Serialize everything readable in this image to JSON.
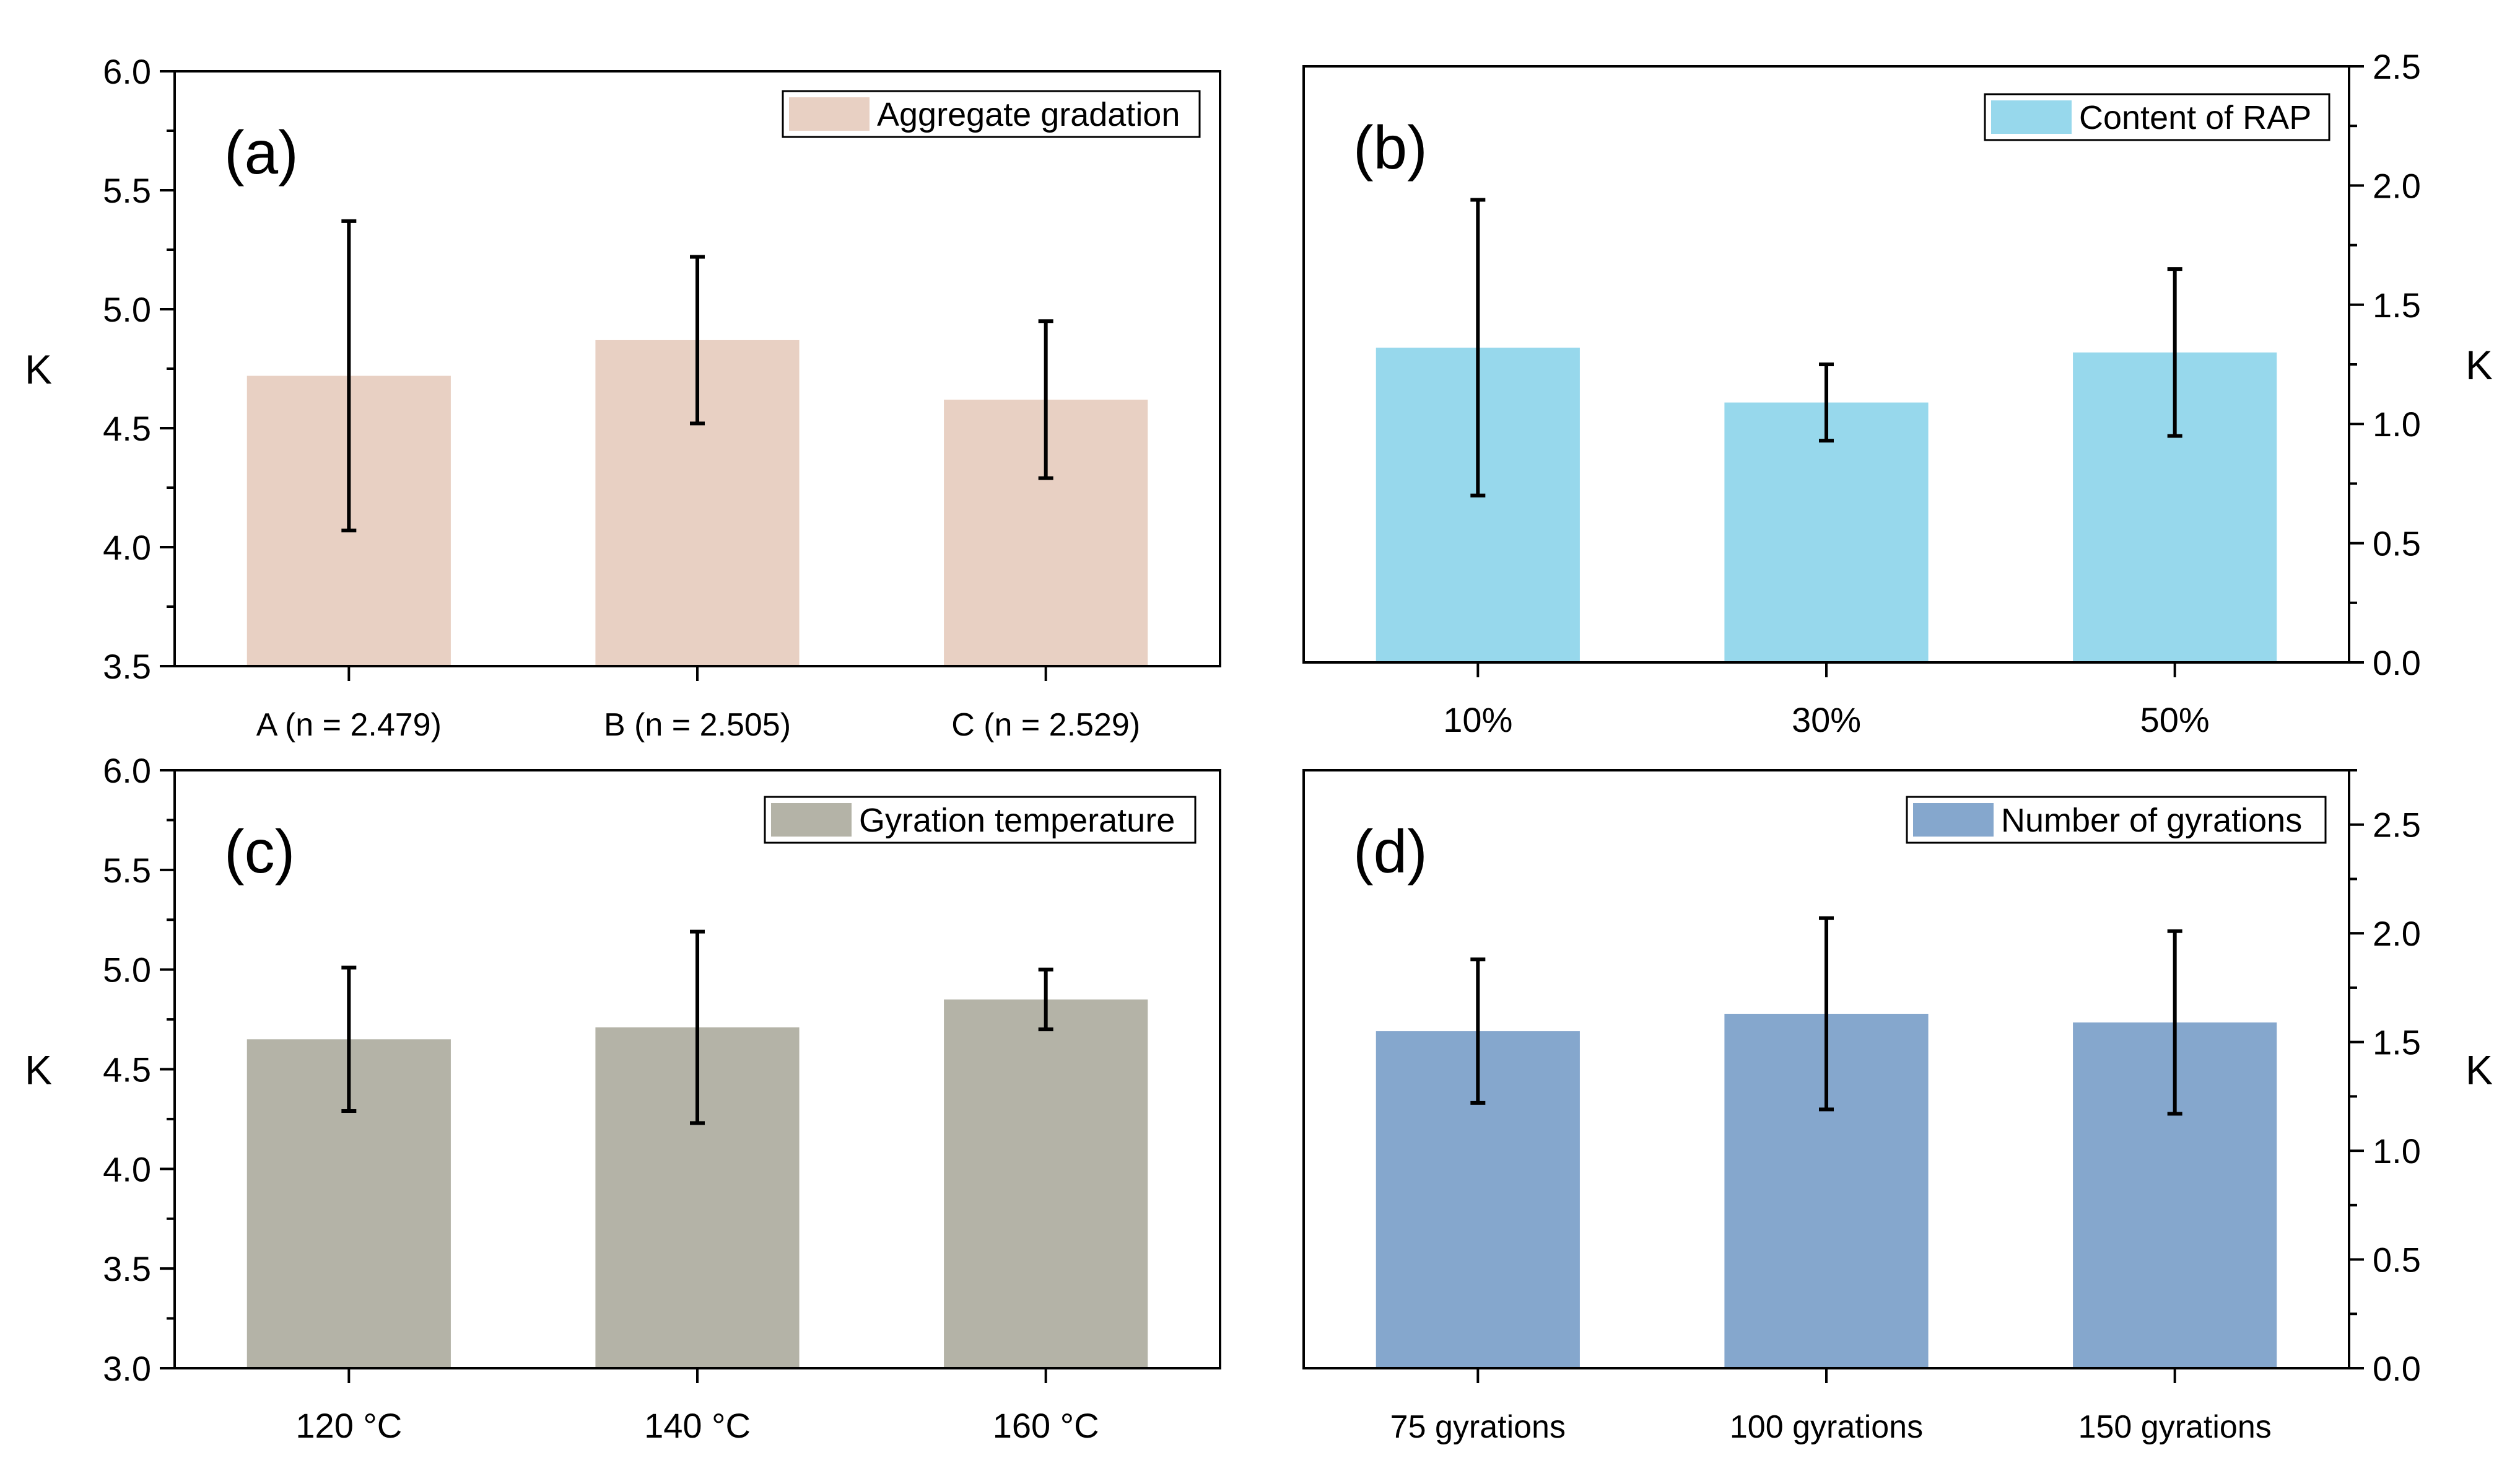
{
  "chart_data": [
    {
      "panel_label": "(a)",
      "type": "bar",
      "categories": [
        "A (n = 2.479)",
        "B (n = 2.505)",
        "C (n = 2.529)"
      ],
      "values": [
        4.72,
        4.87,
        4.62
      ],
      "errors": [
        0.65,
        0.35,
        0.33
      ],
      "ylabel": "K",
      "ylim": [
        3.5,
        6.0
      ],
      "yticks": [
        "3.5",
        "4.0",
        "4.5",
        "5.0",
        "5.5",
        "6.0"
      ],
      "y_axis_side": "left",
      "legend": "Aggregate gradation",
      "color": "#e8d0c3"
    },
    {
      "panel_label": "(b)",
      "type": "bar",
      "categories": [
        "10%",
        "30%",
        "50%"
      ],
      "values": [
        1.32,
        1.09,
        1.3
      ],
      "errors": [
        0.62,
        0.16,
        0.35
      ],
      "ylabel": "K",
      "ylim": [
        0.0,
        2.5
      ],
      "yticks": [
        "0.0",
        "0.5",
        "1.0",
        "1.5",
        "2.0",
        "2.5"
      ],
      "y_axis_side": "right",
      "legend": "Content of RAP",
      "color": "#97d8ec"
    },
    {
      "panel_label": "(c)",
      "type": "bar",
      "categories": [
        "120 °C",
        "140 °C",
        "160 °C"
      ],
      "values": [
        4.65,
        4.71,
        4.85
      ],
      "errors": [
        0.36,
        0.48,
        0.15
      ],
      "ylabel": "K",
      "ylim": [
        3.0,
        6.0
      ],
      "yticks": [
        "3.0",
        "3.5",
        "4.0",
        "4.5",
        "5.0",
        "5.5",
        "6.0"
      ],
      "y_axis_side": "left",
      "legend": "Gyration temperature",
      "color": "#b4b3a7"
    },
    {
      "panel_label": "(d)",
      "type": "bar",
      "categories": [
        "75 gyrations",
        "100 gyrations",
        "150 gyrations"
      ],
      "values": [
        1.55,
        1.63,
        1.59
      ],
      "errors": [
        0.33,
        0.44,
        0.42
      ],
      "ylabel": "K",
      "ylim": [
        0.0,
        2.75
      ],
      "yticks": [
        "0.0",
        "0.5",
        "1.0",
        "1.5",
        "2.0",
        "2.5"
      ],
      "y_axis_side": "right",
      "legend": "Number of gyrations",
      "color": "#85a7cd"
    }
  ]
}
